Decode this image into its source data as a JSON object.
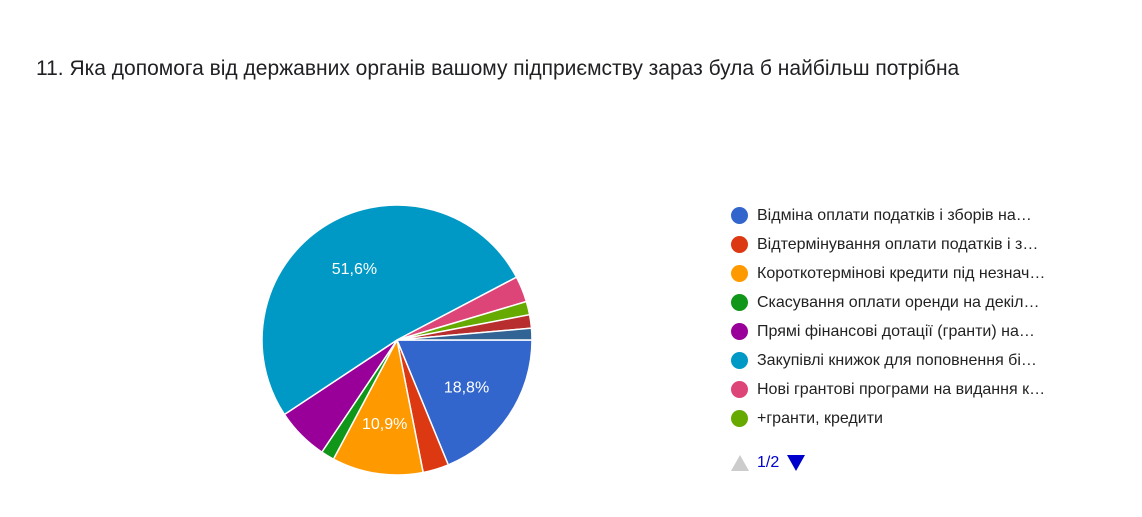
{
  "question": {
    "title": "11. Яка допомога від державних органів вашому підприємству зараз була б найбільш потрібна"
  },
  "chart_data": {
    "type": "pie",
    "title": "11. Яка допомога від державних органів вашому підприємству зараз була б найбільш потрібна",
    "start_angle_deg": 0,
    "direction": "clockwise",
    "slice_labels_visible": [
      "18,8%",
      "10,9%",
      "51,6%"
    ],
    "slices": [
      {
        "label": "Відміна оплати податків і зборів на…",
        "value": 18.8,
        "color": "#3366cc",
        "display": "18,8%"
      },
      {
        "label": "Відтермінування оплати податків і з…",
        "value": 3.1,
        "color": "#dc3912",
        "display": ""
      },
      {
        "label": "Короткотермінові кредити під незнач…",
        "value": 10.9,
        "color": "#ff9900",
        "display": "10,9%"
      },
      {
        "label": "Скасування оплати оренди на декіл…",
        "value": 1.6,
        "color": "#109618",
        "display": ""
      },
      {
        "label": "Прямі фінансові дотації (гранти) на…",
        "value": 6.3,
        "color": "#990099",
        "display": ""
      },
      {
        "label": "Закупівлі книжок для поповнення бі…",
        "value": 51.6,
        "color": "#0099c6",
        "display": "51,6%"
      },
      {
        "label": "Нові грантові програми на видання к…",
        "value": 3.1,
        "color": "#dd4477",
        "display": ""
      },
      {
        "label": "+гранти, кредити",
        "value": 1.6,
        "color": "#66aa00",
        "display": ""
      },
      {
        "label": "",
        "value": 1.6,
        "color": "#b82e2e",
        "display": ""
      },
      {
        "label": "",
        "value": 1.4,
        "color": "#316395",
        "display": ""
      }
    ]
  },
  "legend": {
    "items": [
      {
        "label": "Відміна оплати податків і зборів на…",
        "color": "#3366cc"
      },
      {
        "label": "Відтермінування оплати податків і з…",
        "color": "#dc3912"
      },
      {
        "label": "Короткотермінові кредити під незнач…",
        "color": "#ff9900"
      },
      {
        "label": "Скасування оплати оренди на декіл…",
        "color": "#109618"
      },
      {
        "label": "Прямі фінансові дотації (гранти) на…",
        "color": "#990099"
      },
      {
        "label": "Закупівлі книжок для поповнення бі…",
        "color": "#0099c6"
      },
      {
        "label": "Нові грантові програми на видання к…",
        "color": "#dd4477"
      },
      {
        "label": "+гранти, кредити",
        "color": "#66aa00"
      }
    ]
  },
  "pager": {
    "text": "1/2",
    "prev_icon": "triangle-up-icon",
    "next_icon": "triangle-down-icon"
  }
}
